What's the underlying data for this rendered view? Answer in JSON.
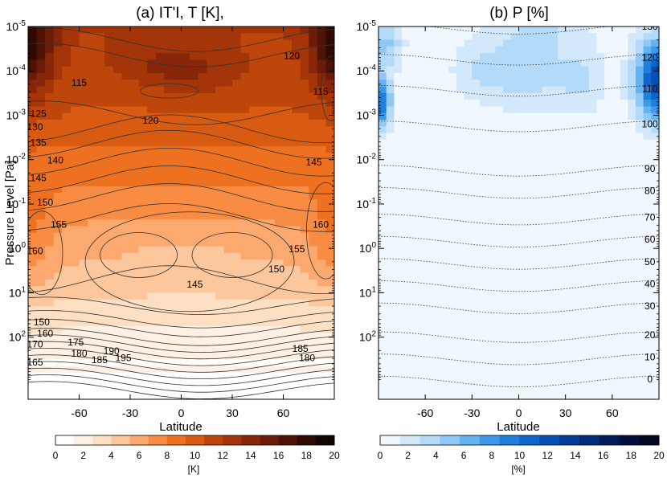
{
  "chart_data": [
    {
      "type": "heatmap",
      "title": "(a) IT'I, T [K],",
      "xlabel": "Latitude",
      "ylabel": "Pressure Level [Pa]",
      "xlim": [
        -90,
        90
      ],
      "x_ticks": [
        "-60",
        "-30",
        "0",
        "30",
        "60"
      ],
      "y_ticks": [
        "10-5",
        "10-4",
        "10-3",
        "10-2",
        "10-1",
        "100",
        "101",
        "102"
      ],
      "y_tick_values": [
        -5,
        -4,
        -3,
        -2,
        -1,
        0,
        1,
        2
      ],
      "colorbar_label": "[K]",
      "colorbar_ticks": [
        "0",
        "2",
        "4",
        "6",
        "8",
        "10",
        "12",
        "14",
        "16",
        "18",
        "20"
      ],
      "contour_labels": [
        {
          "value": "120",
          "lat": 65,
          "logp": -4.3
        },
        {
          "value": "115",
          "lat": -60,
          "logp": -3.7
        },
        {
          "value": "115",
          "lat": 82,
          "logp": -3.5
        },
        {
          "value": "120",
          "lat": -18,
          "logp": -2.85
        },
        {
          "value": "125",
          "lat": -84,
          "logp": -3.0
        },
        {
          "value": "130",
          "lat": -86,
          "logp": -2.7
        },
        {
          "value": "135",
          "lat": -84,
          "logp": -2.35
        },
        {
          "value": "140",
          "lat": -74,
          "logp": -1.95
        },
        {
          "value": "145",
          "lat": -84,
          "logp": -1.55
        },
        {
          "value": "145",
          "lat": 78,
          "logp": -1.9
        },
        {
          "value": "150",
          "lat": -80,
          "logp": -1.0
        },
        {
          "value": "155",
          "lat": -72,
          "logp": -0.5
        },
        {
          "value": "160",
          "lat": -86,
          "logp": 0.1
        },
        {
          "value": "160",
          "lat": 82,
          "logp": -0.5
        },
        {
          "value": "155",
          "lat": 68,
          "logp": 0.05
        },
        {
          "value": "150",
          "lat": 56,
          "logp": 0.5
        },
        {
          "value": "145",
          "lat": 8,
          "logp": 0.85
        },
        {
          "value": "150",
          "lat": -82,
          "logp": 1.7
        },
        {
          "value": "160",
          "lat": -80,
          "logp": 1.95
        },
        {
          "value": "170",
          "lat": -86,
          "logp": 2.2
        },
        {
          "value": "175",
          "lat": -62,
          "logp": 2.15
        },
        {
          "value": "180",
          "lat": -60,
          "logp": 2.4
        },
        {
          "value": "165",
          "lat": -86,
          "logp": 2.6
        },
        {
          "value": "185",
          "lat": -48,
          "logp": 2.55
        },
        {
          "value": "190",
          "lat": -41,
          "logp": 2.35
        },
        {
          "value": "195",
          "lat": -34,
          "logp": 2.5
        },
        {
          "value": "185",
          "lat": 70,
          "logp": 2.3
        },
        {
          "value": "180",
          "lat": 74,
          "logp": 2.5
        }
      ]
    },
    {
      "type": "heatmap",
      "title": "(b) P [%]",
      "xlabel": "Latitude",
      "xlim": [
        -90,
        90
      ],
      "x_ticks": [
        "-60",
        "-30",
        "0",
        "30",
        "60"
      ],
      "y_ticks": [
        "10-5",
        "10-4",
        "10-3",
        "10-2",
        "10-1",
        "100",
        "101",
        "102"
      ],
      "y_tick_values": [
        -5,
        -4,
        -3,
        -2,
        -1,
        0,
        1,
        2
      ],
      "colorbar_label": "[%]",
      "colorbar_ticks": [
        "0",
        "2",
        "4",
        "6",
        "8",
        "10",
        "12",
        "14",
        "16",
        "18",
        "20"
      ],
      "contour_labels": [
        {
          "value": "130",
          "logp": -5.0
        },
        {
          "value": "120",
          "logp": -4.3
        },
        {
          "value": "110",
          "logp": -3.6
        },
        {
          "value": "100",
          "logp": -2.8
        },
        {
          "value": "90",
          "logp": -1.8
        },
        {
          "value": "80",
          "logp": -1.3
        },
        {
          "value": "70",
          "logp": -0.7
        },
        {
          "value": "60",
          "logp": -0.2
        },
        {
          "value": "50",
          "logp": 0.3
        },
        {
          "value": "40",
          "logp": 0.8
        },
        {
          "value": "30",
          "logp": 1.3
        },
        {
          "value": "20",
          "logp": 1.95
        },
        {
          "value": "10",
          "logp": 2.45
        },
        {
          "value": "0",
          "logp": 2.95
        }
      ]
    }
  ],
  "colors": {
    "panel_a_scale": [
      "#ffffff",
      "#fef1e3",
      "#fde0c4",
      "#fcc79c",
      "#fba96f",
      "#f98c43",
      "#ee7121",
      "#d95b12",
      "#bf460b",
      "#a33508",
      "#872608",
      "#6b1b06",
      "#4e1304",
      "#300a02",
      "#120401"
    ],
    "panel_b_scale": [
      "#f0f7fd",
      "#d3e9fb",
      "#b4daf9",
      "#8ec8f6",
      "#63b2f1",
      "#3d98ea",
      "#1f7fde",
      "#0e66cc",
      "#064fb4",
      "#033c98",
      "#022b7a",
      "#011c5b",
      "#010f3a",
      "#000722"
    ]
  }
}
